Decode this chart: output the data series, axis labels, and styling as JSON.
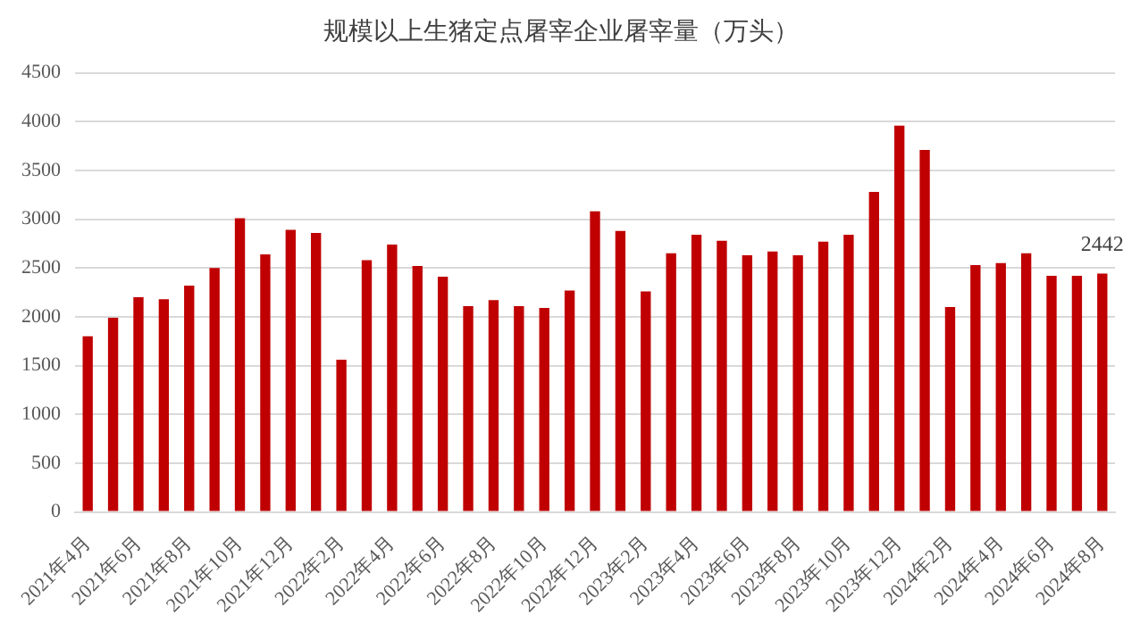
{
  "chart_data": {
    "type": "bar",
    "title": "规模以上生猪定点屠宰企业屠宰量（万头）",
    "categories": [
      "2021年4月",
      null,
      "2021年6月",
      null,
      "2021年8月",
      null,
      "2021年10月",
      null,
      "2021年12月",
      null,
      "2022年2月",
      null,
      "2022年4月",
      null,
      "2022年6月",
      null,
      "2022年8月",
      null,
      "2022年10月",
      null,
      "2022年12月",
      null,
      "2023年2月",
      null,
      "2023年4月",
      null,
      "2023年6月",
      null,
      "2023年8月",
      null,
      "2023年10月",
      null,
      "2023年12月",
      null,
      "2024年2月",
      null,
      "2024年4月",
      null,
      "2024年6月",
      null,
      "2024年8月"
    ],
    "values": [
      1800,
      1990,
      2200,
      2180,
      2320,
      2500,
      3010,
      2640,
      2890,
      2860,
      1560,
      2580,
      2740,
      2520,
      2410,
      2110,
      2170,
      2110,
      2090,
      2270,
      3080,
      2880,
      2260,
      2650,
      2840,
      2780,
      2630,
      2670,
      2630,
      2770,
      2840,
      3280,
      3960,
      3710,
      2100,
      2530,
      2550,
      2650,
      2420,
      2420,
      2442
    ],
    "value_labels": [
      null,
      null,
      null,
      null,
      null,
      null,
      null,
      null,
      null,
      null,
      null,
      null,
      null,
      null,
      null,
      null,
      null,
      null,
      null,
      null,
      null,
      null,
      null,
      null,
      null,
      null,
      null,
      null,
      null,
      null,
      null,
      null,
      null,
      null,
      null,
      null,
      null,
      null,
      null,
      null,
      "2442"
    ],
    "color": "#c00000",
    "ylim": [
      0,
      4500
    ],
    "yticks": [
      0,
      500,
      1000,
      1500,
      2000,
      2500,
      3000,
      3500,
      4000,
      4500
    ],
    "grid": "y"
  }
}
